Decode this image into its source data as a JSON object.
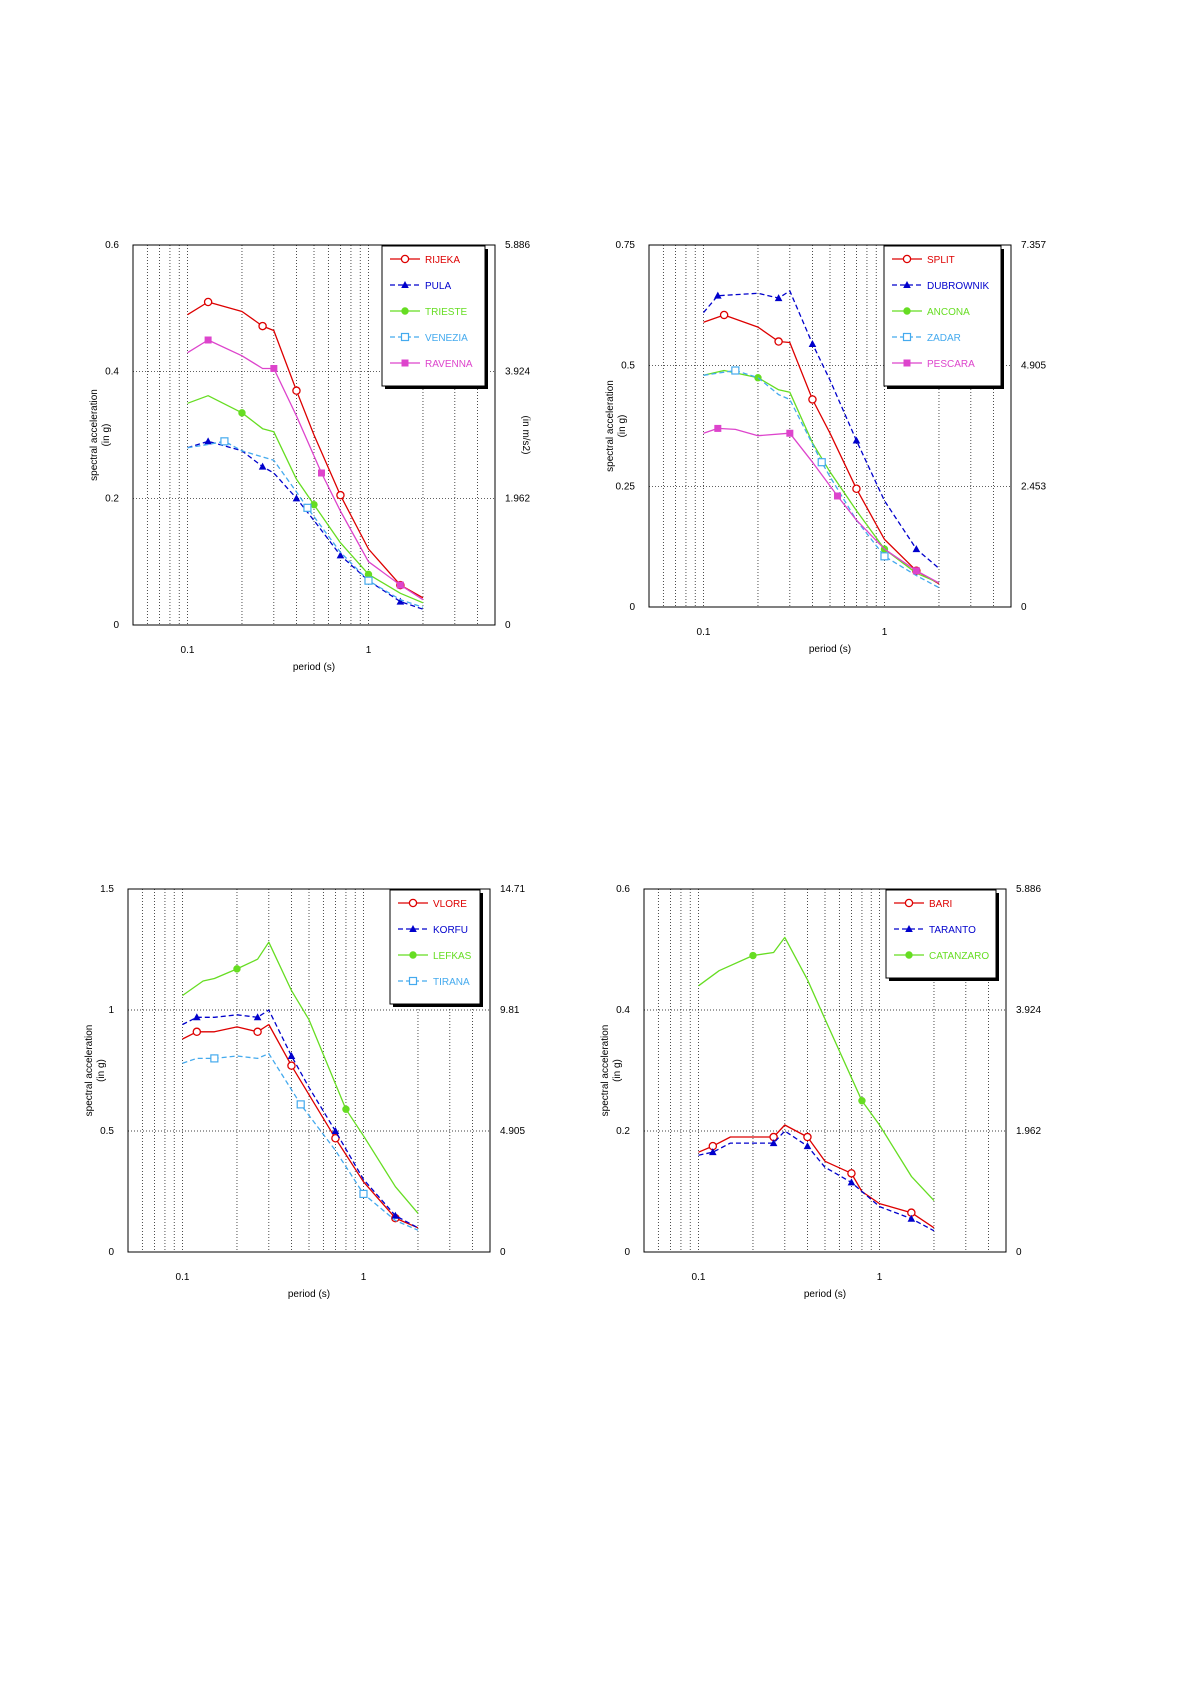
{
  "colors": {
    "red": "#dd0000",
    "blue": "#0000cc",
    "green": "#66dd22",
    "lightblue": "#44aaee",
    "magenta": "#dd44cc"
  },
  "chart_data": [
    {
      "type": "line",
      "x_scale": "log",
      "xlabel": "period (s)",
      "ylabel": "spectral acceleration",
      "ylabel_unit": "(in g)",
      "y2label_unit": "(in m/s2)",
      "xlim": [
        0.05,
        5
      ],
      "ylim": [
        0,
        0.6
      ],
      "xticks": [
        {
          "v": 0.1,
          "label": "0.1"
        },
        {
          "v": 1,
          "label": "1"
        }
      ],
      "yticks": [
        {
          "v": 0,
          "label": "0"
        },
        {
          "v": 0.2,
          "label": "0.2"
        },
        {
          "v": 0.4,
          "label": "0.4"
        },
        {
          "v": 0.6,
          "label": "0.6"
        }
      ],
      "y2ticks": [
        {
          "v": 0,
          "label": "0"
        },
        {
          "v": 0.2,
          "label": "1.962"
        },
        {
          "v": 0.4,
          "label": "3.924"
        },
        {
          "v": 0.6,
          "label": "5.886"
        }
      ],
      "grid": true,
      "legend": "top-right",
      "series": [
        {
          "name": "RIJEKA",
          "color": "red",
          "dash": false,
          "marker": "circle",
          "x": [
            0.1,
            0.13,
            0.2,
            0.26,
            0.3,
            0.4,
            0.5,
            0.7,
            1.0,
            1.5,
            2.0
          ],
          "y": [
            0.49,
            0.51,
            0.495,
            0.472,
            0.465,
            0.37,
            0.3,
            0.205,
            0.12,
            0.063,
            0.043
          ],
          "marker_idx": [
            1,
            3,
            5,
            7,
            9
          ]
        },
        {
          "name": "PULA",
          "color": "blue",
          "dash": true,
          "marker": "triangle",
          "x": [
            0.1,
            0.13,
            0.2,
            0.26,
            0.3,
            0.4,
            0.5,
            0.7,
            1.0,
            1.5,
            2.0
          ],
          "y": [
            0.28,
            0.29,
            0.275,
            0.25,
            0.24,
            0.2,
            0.165,
            0.11,
            0.07,
            0.037,
            0.025
          ],
          "marker_idx": [
            1,
            3,
            5,
            7,
            9
          ]
        },
        {
          "name": "TRIESTE",
          "color": "green",
          "dash": false,
          "marker": "circle-filled",
          "x": [
            0.1,
            0.13,
            0.2,
            0.26,
            0.3,
            0.4,
            0.5,
            0.7,
            1.0,
            1.5,
            2.0
          ],
          "y": [
            0.35,
            0.362,
            0.335,
            0.31,
            0.305,
            0.23,
            0.19,
            0.13,
            0.08,
            0.05,
            0.035
          ],
          "marker_idx": [
            2,
            6,
            8
          ]
        },
        {
          "name": "VENEZIA",
          "color": "lightblue",
          "dash": true,
          "marker": "square-open",
          "x": [
            0.1,
            0.13,
            0.16,
            0.2,
            0.3,
            0.4,
            0.46,
            0.7,
            1.0,
            1.5,
            2.0
          ],
          "y": [
            0.28,
            0.285,
            0.29,
            0.275,
            0.26,
            0.21,
            0.185,
            0.115,
            0.07,
            0.04,
            0.028
          ],
          "marker_idx": [
            2,
            6,
            8
          ]
        },
        {
          "name": "RAVENNA",
          "color": "magenta",
          "dash": false,
          "marker": "square-filled",
          "x": [
            0.1,
            0.13,
            0.2,
            0.26,
            0.3,
            0.4,
            0.55,
            0.7,
            1.0,
            1.5,
            2.0
          ],
          "y": [
            0.43,
            0.45,
            0.425,
            0.405,
            0.405,
            0.33,
            0.24,
            0.18,
            0.1,
            0.063,
            0.04
          ],
          "marker_idx": [
            1,
            4,
            6,
            9
          ]
        }
      ]
    },
    {
      "type": "line",
      "x_scale": "log",
      "xlabel": "period (s)",
      "ylabel": "spectral acceleration",
      "ylabel_unit": "(in g)",
      "y2label_unit": "",
      "xlim": [
        0.05,
        5
      ],
      "ylim": [
        0,
        0.75
      ],
      "xticks": [
        {
          "v": 0.1,
          "label": "0.1"
        },
        {
          "v": 1,
          "label": "1"
        }
      ],
      "yticks": [
        {
          "v": 0,
          "label": "0"
        },
        {
          "v": 0.25,
          "label": "0.25"
        },
        {
          "v": 0.5,
          "label": "0.5"
        },
        {
          "v": 0.75,
          "label": "0.75"
        }
      ],
      "y2ticks": [
        {
          "v": 0,
          "label": "0"
        },
        {
          "v": 0.25,
          "label": "2.453"
        },
        {
          "v": 0.5,
          "label": "4.905"
        },
        {
          "v": 0.75,
          "label": "7.357"
        }
      ],
      "grid": true,
      "legend": "top-right",
      "series": [
        {
          "name": "SPLIT",
          "color": "red",
          "dash": false,
          "marker": "circle",
          "x": [
            0.1,
            0.13,
            0.2,
            0.26,
            0.3,
            0.4,
            0.5,
            0.7,
            1.0,
            1.5,
            2.0
          ],
          "y": [
            0.59,
            0.605,
            0.58,
            0.55,
            0.548,
            0.43,
            0.36,
            0.245,
            0.14,
            0.075,
            0.048
          ],
          "marker_idx": [
            1,
            3,
            5,
            7,
            9
          ]
        },
        {
          "name": "DUBROWNIK",
          "color": "blue",
          "dash": true,
          "marker": "triangle",
          "x": [
            0.1,
            0.12,
            0.2,
            0.26,
            0.3,
            0.4,
            0.5,
            0.7,
            1.0,
            1.5,
            2.0
          ],
          "y": [
            0.61,
            0.645,
            0.65,
            0.64,
            0.655,
            0.545,
            0.47,
            0.345,
            0.22,
            0.12,
            0.08
          ],
          "marker_idx": [
            1,
            3,
            5,
            7,
            9
          ]
        },
        {
          "name": "ANCONA",
          "color": "green",
          "dash": false,
          "marker": "circle-filled",
          "x": [
            0.1,
            0.13,
            0.2,
            0.26,
            0.3,
            0.4,
            0.5,
            0.7,
            1.0,
            1.5,
            2.0
          ],
          "y": [
            0.48,
            0.49,
            0.475,
            0.45,
            0.445,
            0.34,
            0.28,
            0.2,
            0.12,
            0.07,
            0.05
          ],
          "marker_idx": [
            2,
            8
          ]
        },
        {
          "name": "ZADAR",
          "color": "lightblue",
          "dash": true,
          "marker": "square-open",
          "x": [
            0.1,
            0.15,
            0.2,
            0.26,
            0.3,
            0.45,
            0.5,
            0.7,
            1.0,
            1.5,
            2.0
          ],
          "y": [
            0.48,
            0.49,
            0.475,
            0.44,
            0.43,
            0.3,
            0.27,
            0.18,
            0.105,
            0.065,
            0.04
          ],
          "marker_idx": [
            1,
            5,
            8
          ]
        },
        {
          "name": "PESCARA",
          "color": "magenta",
          "dash": false,
          "marker": "square-filled",
          "x": [
            0.1,
            0.12,
            0.15,
            0.2,
            0.3,
            0.4,
            0.55,
            0.7,
            1.0,
            1.5,
            2.0
          ],
          "y": [
            0.36,
            0.37,
            0.368,
            0.355,
            0.36,
            0.3,
            0.23,
            0.18,
            0.12,
            0.075,
            0.05
          ],
          "marker_idx": [
            1,
            4,
            6,
            9
          ]
        }
      ]
    },
    {
      "type": "line",
      "x_scale": "log",
      "xlabel": "period (s)",
      "ylabel": "spectral acceleration",
      "ylabel_unit": "(in g)",
      "y2label_unit": "",
      "xlim": [
        0.05,
        5
      ],
      "ylim": [
        0,
        1.5
      ],
      "xticks": [
        {
          "v": 0.1,
          "label": "0.1"
        },
        {
          "v": 1,
          "label": "1"
        }
      ],
      "yticks": [
        {
          "v": 0,
          "label": "0"
        },
        {
          "v": 0.5,
          "label": "0.5"
        },
        {
          "v": 1,
          "label": "1"
        },
        {
          "v": 1.5,
          "label": "1.5"
        }
      ],
      "y2ticks": [
        {
          "v": 0,
          "label": "0"
        },
        {
          "v": 0.5,
          "label": "4.905"
        },
        {
          "v": 1,
          "label": "9.81"
        },
        {
          "v": 1.5,
          "label": "14.71"
        }
      ],
      "grid": true,
      "legend": "top-right",
      "series": [
        {
          "name": "VLORE",
          "color": "red",
          "dash": false,
          "marker": "circle",
          "x": [
            0.1,
            0.12,
            0.15,
            0.2,
            0.26,
            0.3,
            0.4,
            0.5,
            0.7,
            1.0,
            1.5,
            2.0
          ],
          "y": [
            0.88,
            0.91,
            0.91,
            0.93,
            0.91,
            0.94,
            0.77,
            0.65,
            0.47,
            0.29,
            0.14,
            0.1
          ],
          "marker_idx": [
            1,
            4,
            6,
            8,
            10
          ]
        },
        {
          "name": "KORFU",
          "color": "blue",
          "dash": true,
          "marker": "triangle",
          "x": [
            0.1,
            0.12,
            0.15,
            0.2,
            0.26,
            0.3,
            0.4,
            0.5,
            0.7,
            1.0,
            1.5,
            2.0
          ],
          "y": [
            0.94,
            0.97,
            0.97,
            0.98,
            0.97,
            1.0,
            0.81,
            0.68,
            0.5,
            0.3,
            0.15,
            0.1
          ],
          "marker_idx": [
            1,
            4,
            6,
            8,
            10
          ]
        },
        {
          "name": "LEFKAS",
          "color": "green",
          "dash": false,
          "marker": "circle-filled",
          "x": [
            0.1,
            0.13,
            0.15,
            0.2,
            0.26,
            0.3,
            0.4,
            0.5,
            0.8,
            1.0,
            1.5,
            2.0
          ],
          "y": [
            1.06,
            1.12,
            1.13,
            1.17,
            1.21,
            1.28,
            1.08,
            0.96,
            0.59,
            0.48,
            0.27,
            0.16
          ],
          "marker_idx": [
            3,
            8
          ]
        },
        {
          "name": "TIRANA",
          "color": "lightblue",
          "dash": true,
          "marker": "square-open",
          "x": [
            0.1,
            0.12,
            0.15,
            0.2,
            0.26,
            0.3,
            0.45,
            0.7,
            1.0,
            1.5,
            2.0
          ],
          "y": [
            0.78,
            0.8,
            0.8,
            0.81,
            0.8,
            0.82,
            0.61,
            0.42,
            0.24,
            0.13,
            0.09
          ],
          "marker_idx": [
            2,
            6,
            8
          ]
        }
      ]
    },
    {
      "type": "line",
      "x_scale": "log",
      "xlabel": "period (s)",
      "ylabel": "spectral acceleration",
      "ylabel_unit": "(in g)",
      "y2label_unit": "",
      "xlim": [
        0.05,
        5
      ],
      "ylim": [
        0,
        0.6
      ],
      "xticks": [
        {
          "v": 0.1,
          "label": "0.1"
        },
        {
          "v": 1,
          "label": "1"
        }
      ],
      "yticks": [
        {
          "v": 0,
          "label": "0"
        },
        {
          "v": 0.2,
          "label": "0.2"
        },
        {
          "v": 0.4,
          "label": "0.4"
        },
        {
          "v": 0.6,
          "label": "0.6"
        }
      ],
      "y2ticks": [
        {
          "v": 0,
          "label": "0"
        },
        {
          "v": 0.2,
          "label": "1.962"
        },
        {
          "v": 0.4,
          "label": "3.924"
        },
        {
          "v": 0.6,
          "label": "5.886"
        }
      ],
      "grid": true,
      "legend": "top-right",
      "series": [
        {
          "name": "BARI",
          "color": "red",
          "dash": false,
          "marker": "circle",
          "x": [
            0.1,
            0.12,
            0.15,
            0.2,
            0.26,
            0.3,
            0.4,
            0.5,
            0.7,
            0.8,
            1.0,
            1.5,
            2.0
          ],
          "y": [
            0.165,
            0.175,
            0.19,
            0.19,
            0.19,
            0.21,
            0.19,
            0.15,
            0.13,
            0.1,
            0.08,
            0.065,
            0.04
          ],
          "marker_idx": [
            1,
            4,
            6,
            8,
            11
          ]
        },
        {
          "name": "TARANTO",
          "color": "blue",
          "dash": true,
          "marker": "triangle",
          "x": [
            0.1,
            0.12,
            0.15,
            0.2,
            0.26,
            0.3,
            0.4,
            0.5,
            0.7,
            1.0,
            1.5,
            2.0
          ],
          "y": [
            0.16,
            0.165,
            0.18,
            0.18,
            0.18,
            0.2,
            0.175,
            0.14,
            0.115,
            0.075,
            0.055,
            0.035
          ],
          "marker_idx": [
            1,
            4,
            6,
            8,
            10
          ]
        },
        {
          "name": "CATANZARO",
          "color": "green",
          "dash": false,
          "marker": "circle-filled",
          "x": [
            0.1,
            0.13,
            0.2,
            0.26,
            0.3,
            0.4,
            0.5,
            0.8,
            1.0,
            1.5,
            2.0
          ],
          "y": [
            0.44,
            0.465,
            0.49,
            0.495,
            0.52,
            0.45,
            0.385,
            0.25,
            0.21,
            0.125,
            0.085
          ],
          "marker_idx": [
            2,
            7
          ]
        }
      ]
    }
  ]
}
